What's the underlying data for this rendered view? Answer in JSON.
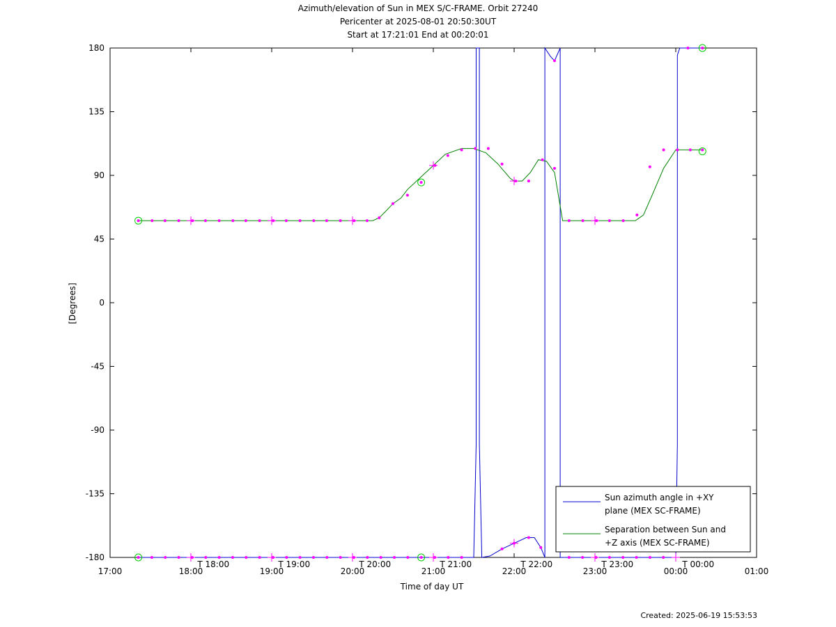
{
  "title": {
    "line1": "Azimuth/elevation of Sun in MEX S/C-FRAME.  Orbit 27240",
    "line2": "Pericenter at 2025-08-01 20:50:30UT",
    "line3": "Start at 17:21:01 End at 00:20:01"
  },
  "footer": {
    "created": "Created: 2025-06-19 15:53:53"
  },
  "chart_data": {
    "type": "line",
    "xlabel": "Time of day UT",
    "ylabel": "[Degrees]",
    "xlim": [
      17.0,
      25.0
    ],
    "ylim": [
      -180,
      180
    ],
    "x_ticks": [
      {
        "v": 17,
        "label": "17:00"
      },
      {
        "v": 18,
        "label": "18:00"
      },
      {
        "v": 19,
        "label": "19:00"
      },
      {
        "v": 20,
        "label": "20:00"
      },
      {
        "v": 21,
        "label": "21:00"
      },
      {
        "v": 22,
        "label": "22:00"
      },
      {
        "v": 23,
        "label": "23:00"
      },
      {
        "v": 24,
        "label": "00:00"
      },
      {
        "v": 25,
        "label": "01:00"
      }
    ],
    "y_ticks": [
      180,
      135,
      90,
      45,
      0,
      -45,
      -90,
      -135,
      -180
    ],
    "time_markers": [
      {
        "v": 18.15,
        "label": "T 18:00"
      },
      {
        "v": 19.15,
        "label": "T 19:00"
      },
      {
        "v": 20.15,
        "label": "T 20:00"
      },
      {
        "v": 21.15,
        "label": "T 21:00"
      },
      {
        "v": 22.15,
        "label": "T 22:00"
      },
      {
        "v": 23.15,
        "label": "T 23:00"
      },
      {
        "v": 24.15,
        "label": "T 00:00"
      }
    ],
    "legend_position": "bottom-right",
    "series": [
      {
        "name": "Sun azimuth angle in +XY plane (MEX SC-FRAME)",
        "legend_lines": [
          "Sun azimuth angle in +XY",
          "plane (MEX SC-FRAME)"
        ],
        "color": "#0000cc",
        "x": [
          17.35,
          21.5,
          21.53,
          21.53,
          21.57,
          21.57,
          21.6,
          21.7,
          21.85,
          22.0,
          22.15,
          22.25,
          22.33,
          22.38,
          22.38,
          22.45,
          22.5,
          22.57,
          22.57,
          22.6,
          23.0,
          23.5,
          24.0,
          24.02,
          24.02,
          24.05,
          24.33
        ],
        "y": [
          -180,
          -180,
          -100,
          180,
          180,
          -100,
          -180,
          -179,
          -174,
          -170,
          -166,
          -166,
          -173,
          -180,
          180,
          174,
          171,
          180,
          -180,
          -180,
          -180,
          -180,
          -180,
          -100,
          175,
          180,
          180
        ]
      },
      {
        "name": "Separation between Sun and +Z axis (MEX SC-FRAME)",
        "legend_lines": [
          "Separation between Sun and",
          "+Z axis (MEX SC-FRAME)"
        ],
        "color": "#008000",
        "x": [
          17.35,
          17.5,
          18.0,
          18.5,
          19.0,
          19.5,
          20.0,
          20.25,
          20.33,
          20.4,
          20.5,
          20.6,
          20.68,
          20.85,
          21.0,
          21.15,
          21.35,
          21.5,
          21.65,
          21.8,
          21.95,
          22.0,
          22.1,
          22.2,
          22.3,
          22.4,
          22.5,
          22.6,
          22.7,
          23.0,
          23.2,
          23.4,
          23.5,
          23.6,
          23.7,
          23.85,
          24.0,
          24.33
        ],
        "y": [
          58,
          58,
          58,
          58,
          58,
          58,
          58,
          58,
          60,
          64,
          70,
          74,
          80,
          89,
          97,
          105,
          109,
          109,
          106,
          98,
          88,
          86,
          86,
          92,
          101,
          100,
          92,
          58,
          58,
          58,
          58,
          58,
          58,
          62,
          75,
          95,
          108,
          108
        ]
      }
    ],
    "magenta_points_y": [
      {
        "x": 17.35,
        "y": 58
      },
      {
        "x": 17.52,
        "y": 58
      },
      {
        "x": 17.68,
        "y": 58
      },
      {
        "x": 17.85,
        "y": 58
      },
      {
        "x": 18.02,
        "y": 58
      },
      {
        "x": 18.18,
        "y": 58
      },
      {
        "x": 18.35,
        "y": 58
      },
      {
        "x": 18.52,
        "y": 58
      },
      {
        "x": 18.68,
        "y": 58
      },
      {
        "x": 18.85,
        "y": 58
      },
      {
        "x": 19.02,
        "y": 58
      },
      {
        "x": 19.18,
        "y": 58
      },
      {
        "x": 19.35,
        "y": 58
      },
      {
        "x": 19.52,
        "y": 58
      },
      {
        "x": 19.68,
        "y": 58
      },
      {
        "x": 19.85,
        "y": 58
      },
      {
        "x": 20.02,
        "y": 58
      },
      {
        "x": 20.18,
        "y": 58
      },
      {
        "x": 20.33,
        "y": 60
      },
      {
        "x": 20.5,
        "y": 70
      },
      {
        "x": 20.68,
        "y": 76
      },
      {
        "x": 20.85,
        "y": 85
      },
      {
        "x": 21.02,
        "y": 97
      },
      {
        "x": 21.18,
        "y": 104
      },
      {
        "x": 21.35,
        "y": 108
      },
      {
        "x": 21.52,
        "y": 109
      },
      {
        "x": 21.68,
        "y": 109
      },
      {
        "x": 21.85,
        "y": 98
      },
      {
        "x": 22.02,
        "y": 86
      },
      {
        "x": 22.18,
        "y": 86
      },
      {
        "x": 22.35,
        "y": 101
      },
      {
        "x": 22.5,
        "y": 95
      },
      {
        "x": 22.68,
        "y": 58
      },
      {
        "x": 22.85,
        "y": 58
      },
      {
        "x": 23.02,
        "y": 58
      },
      {
        "x": 23.18,
        "y": 58
      },
      {
        "x": 23.35,
        "y": 58
      },
      {
        "x": 23.52,
        "y": 62
      },
      {
        "x": 23.68,
        "y": 96
      },
      {
        "x": 23.85,
        "y": 108
      },
      {
        "x": 24.02,
        "y": 108
      },
      {
        "x": 24.18,
        "y": 108
      },
      {
        "x": 24.33,
        "y": 108
      }
    ],
    "circle_markers": [
      {
        "x": 17.35,
        "y": 58
      },
      {
        "x": 20.85,
        "y": 85
      },
      {
        "x": 24.33,
        "y": 107
      },
      {
        "x": 17.35,
        "y": -180
      },
      {
        "x": 20.85,
        "y": -180
      },
      {
        "x": 24.33,
        "y": 180
      }
    ],
    "plus_markers": [
      {
        "x": 18.0,
        "y": 58
      },
      {
        "x": 19.0,
        "y": 58
      },
      {
        "x": 20.0,
        "y": 58
      },
      {
        "x": 21.0,
        "y": 97
      },
      {
        "x": 22.0,
        "y": 86
      },
      {
        "x": 23.0,
        "y": 58
      },
      {
        "x": 18.0,
        "y": -180
      },
      {
        "x": 19.0,
        "y": -180
      },
      {
        "x": 20.0,
        "y": -180
      },
      {
        "x": 21.0,
        "y": -180
      },
      {
        "x": 22.0,
        "y": -170
      },
      {
        "x": 23.0,
        "y": -180
      },
      {
        "x": 24.0,
        "y": -180
      }
    ],
    "legend_marker_color": "#ff00ff"
  }
}
